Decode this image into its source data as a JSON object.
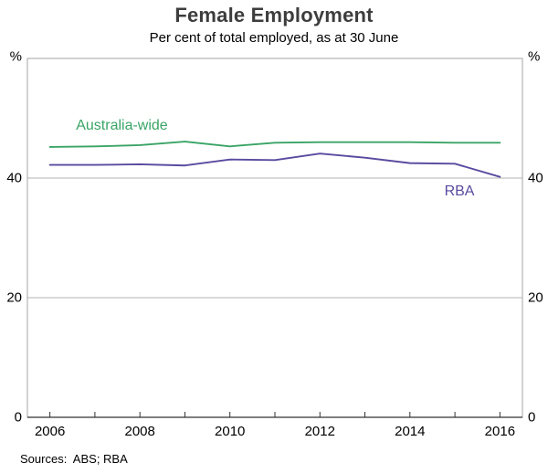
{
  "title": "Female Employment",
  "subtitle": "Per cent of total employed, as at 30 June",
  "source": "Sources:  ABS; RBA",
  "colors": {
    "australia_wide": "#3aa466",
    "rba": "#5a4a9f",
    "grid": "#b3b3b3",
    "frame": "#a6a6a6",
    "axis": "#333333",
    "tick_text": "#000000"
  },
  "chart_data": {
    "type": "line",
    "title": "Female Employment",
    "subtitle": "Per cent of total employed, as at 30 June",
    "ylabel": "%",
    "xlabel": "",
    "x": [
      2006,
      2007,
      2008,
      2009,
      2010,
      2011,
      2012,
      2013,
      2014,
      2015,
      2016
    ],
    "series": [
      {
        "name": "Australia-wide",
        "color": "#3aa466",
        "values": [
          45.2,
          45.3,
          45.5,
          46.1,
          45.3,
          45.9,
          46.0,
          46.0,
          46.0,
          45.9,
          45.9
        ]
      },
      {
        "name": "RBA",
        "color": "#5a4a9f",
        "values": [
          42.2,
          42.2,
          42.3,
          42.1,
          43.1,
          43.0,
          44.1,
          43.4,
          42.5,
          42.4,
          40.2
        ]
      }
    ],
    "xlim": [
      2005.5,
      2016.5
    ],
    "ylim": [
      0,
      60
    ],
    "yticks": [
      0,
      20,
      40
    ],
    "ytick_unit": "%",
    "gridlines": [
      20,
      40
    ],
    "xticks": [
      2006,
      2008,
      2010,
      2012,
      2014,
      2016
    ],
    "minor_xticks": [
      2006,
      2007,
      2008,
      2009,
      2010,
      2011,
      2012,
      2013,
      2014,
      2015,
      2016
    ],
    "legend_position": "inline-labels",
    "grid": true,
    "annotations": [
      {
        "text": "Australia-wide",
        "x": 2007.6,
        "y": 48.8,
        "color": "#3aa466"
      },
      {
        "text": "RBA",
        "x": 2015.1,
        "y": 37.8,
        "color": "#5a4a9f"
      }
    ]
  }
}
